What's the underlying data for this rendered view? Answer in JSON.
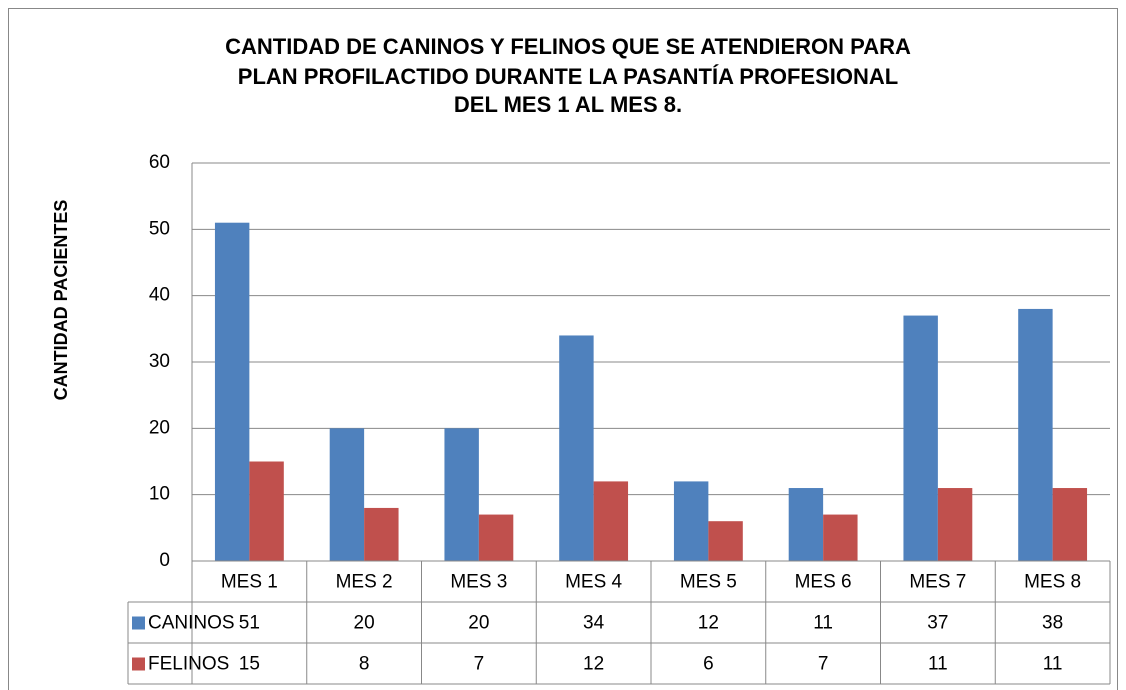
{
  "chart_data": {
    "type": "bar",
    "title": [
      "CANTIDAD DE CANINOS Y FELINOS QUE SE ATENDIERON PARA",
      "PLAN PROFILACTIDO DURANTE LA PASANTÍA PROFESIONAL",
      "DEL MES 1 AL MES 8."
    ],
    "y_label": "CANTIDAD PACIENTES",
    "categories": [
      "MES 1",
      "MES 2",
      "MES 3",
      "MES 4",
      "MES 5",
      "MES 6",
      "MES 7",
      "MES 8"
    ],
    "series": [
      {
        "name": "CANINOS",
        "color": "#4f81bd",
        "values": [
          51,
          20,
          20,
          34,
          12,
          11,
          37,
          38
        ]
      },
      {
        "name": "FELINOS",
        "color": "#c0504d",
        "values": [
          15,
          8,
          7,
          12,
          6,
          7,
          11,
          11
        ]
      }
    ],
    "ylim": [
      0,
      60
    ],
    "yticks": [
      0,
      10,
      20,
      30,
      40,
      50,
      60
    ],
    "grid": true,
    "data_table": true
  }
}
